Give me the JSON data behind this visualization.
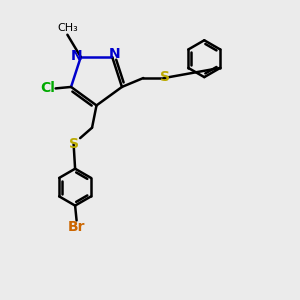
{
  "bg_color": "#ebebeb",
  "bond_color": "#000000",
  "n_color": "#0000cc",
  "cl_color": "#00aa00",
  "s_color": "#bbaa00",
  "br_color": "#cc6600",
  "text_color": "#000000",
  "line_width": 1.8,
  "figsize": [
    3.0,
    3.0
  ],
  "dpi": 100,
  "xlim": [
    0,
    10
  ],
  "ylim": [
    0,
    10
  ]
}
